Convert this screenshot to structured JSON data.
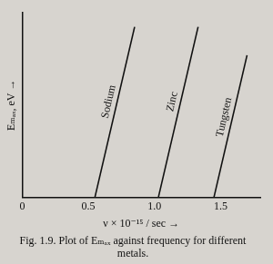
{
  "chart_data": {
    "type": "line",
    "title": "Fig. 1.9. Plot of Eₘₐₓ against frequency for different metals.",
    "x_label": "ν × 10⁻¹⁵ / sec →",
    "y_label": "Eₘₐₓ, eV →",
    "xlim": [
      0,
      1.8
    ],
    "xticks": [
      0,
      0.5,
      {
        "value": 1,
        "label": "1.0"
      },
      1.5
    ],
    "ylim": [
      0,
      1.3
    ],
    "tick_labels": "x",
    "grid": false,
    "series": [
      {
        "name": "Sodium",
        "color": "#111111",
        "x": [
          0.55,
          0.85
        ],
        "values": [
          0,
          1.2
        ]
      },
      {
        "name": "Zinc",
        "color": "#111111",
        "x": [
          1.03,
          1.33
        ],
        "values": [
          0,
          1.2
        ]
      },
      {
        "name": "Tungsten",
        "color": "#111111",
        "x": [
          1.45,
          1.7
        ],
        "values": [
          0,
          1.0
        ]
      }
    ]
  }
}
